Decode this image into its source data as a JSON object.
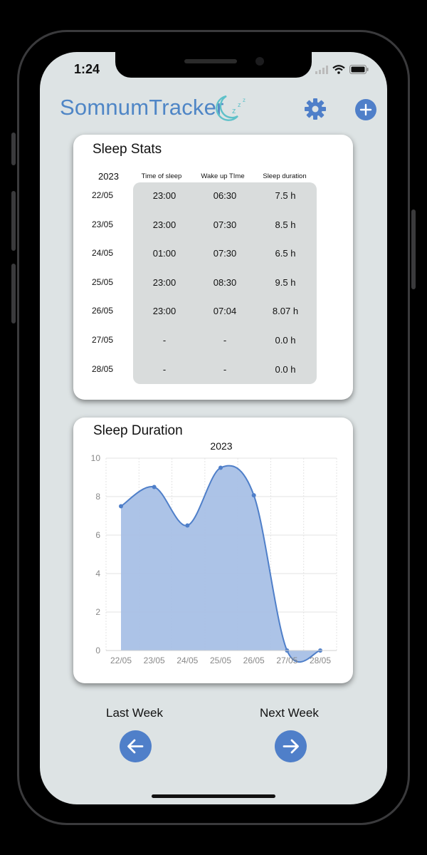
{
  "status_bar": {
    "time": "1:24"
  },
  "header": {
    "app_name": "SomnumTracker",
    "settings_icon": "gear-icon",
    "add_icon": "plus-icon"
  },
  "stats": {
    "title": "Sleep Stats",
    "year": "2023",
    "columns": [
      "Time of sleep",
      "Wake up TIme",
      "Sleep duration"
    ],
    "rows": [
      {
        "date": "22/05",
        "sleep": "23:00",
        "wake": "06:30",
        "duration": "7.5 h"
      },
      {
        "date": "23/05",
        "sleep": "23:00",
        "wake": "07:30",
        "duration": "8.5 h"
      },
      {
        "date": "24/05",
        "sleep": "01:00",
        "wake": "07:30",
        "duration": "6.5 h"
      },
      {
        "date": "25/05",
        "sleep": "23:00",
        "wake": "08:30",
        "duration": "9.5 h"
      },
      {
        "date": "26/05",
        "sleep": "23:00",
        "wake": "07:04",
        "duration": "8.07 h"
      },
      {
        "date": "27/05",
        "sleep": "-",
        "wake": "-",
        "duration": "0.0 h"
      },
      {
        "date": "28/05",
        "sleep": "-",
        "wake": "-",
        "duration": "0.0 h"
      }
    ]
  },
  "duration_card": {
    "title": "Sleep Duration"
  },
  "chart_data": {
    "type": "area",
    "title": "2023",
    "categories": [
      "22/05",
      "23/05",
      "24/05",
      "25/05",
      "26/05",
      "27/05",
      "28/05"
    ],
    "values": [
      7.5,
      8.5,
      6.5,
      9.5,
      8.07,
      0,
      0
    ],
    "ylim": [
      0,
      10
    ],
    "yticks": [
      0,
      2,
      4,
      6,
      8,
      10
    ],
    "grid": true,
    "fill_color": "#a8c0e6",
    "line_color": "#4f7fc9"
  },
  "navigation": {
    "last_week_label": "Last Week",
    "next_week_label": "Next Week",
    "left_icon": "arrow-left-icon",
    "right_icon": "arrow-right-icon"
  },
  "colors": {
    "accent": "#4f7fc9",
    "background": "#dde3e4",
    "table_bg": "#d9dcdc"
  }
}
